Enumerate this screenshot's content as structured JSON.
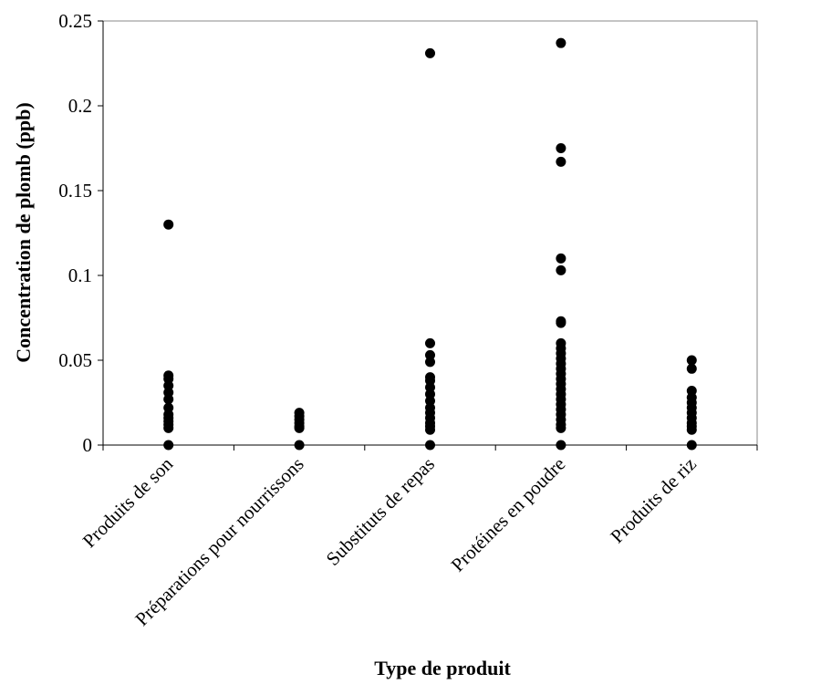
{
  "chart_data": {
    "type": "strip",
    "x_label": "Type de produit",
    "y_label": "Concentration de plomb (ppb)",
    "categories": [
      "Produits de son",
      "Préparations pour nourrissons",
      "Substituts de repas",
      "Protéines en poudre",
      "Produits de riz"
    ],
    "values": [
      [
        0.13,
        0.041,
        0.039,
        0.035,
        0.031,
        0.027,
        0.022,
        0.018,
        0.016,
        0.014,
        0.012,
        0.01,
        0
      ],
      [
        0.019,
        0.017,
        0.015,
        0.013,
        0.011,
        0.01,
        0
      ],
      [
        0.231,
        0.06,
        0.053,
        0.049,
        0.04,
        0.038,
        0.034,
        0.03,
        0.026,
        0.022,
        0.019,
        0.016,
        0.013,
        0.011,
        0.009,
        0
      ],
      [
        0.237,
        0.175,
        0.167,
        0.11,
        0.103,
        0.073,
        0.072,
        0.06,
        0.057,
        0.054,
        0.051,
        0.048,
        0.045,
        0.042,
        0.039,
        0.036,
        0.033,
        0.03,
        0.027,
        0.024,
        0.021,
        0.018,
        0.015,
        0.012,
        0.01,
        0
      ],
      [
        0.05,
        0.045,
        0.032,
        0.028,
        0.025,
        0.022,
        0.019,
        0.016,
        0.013,
        0.011,
        0.009,
        0
      ]
    ],
    "color": "#000000",
    "ylim": [
      0,
      0.25
    ],
    "yticks": [
      0,
      0.05,
      0.1,
      0.15,
      0.2,
      0.25
    ],
    "grid": false
  }
}
